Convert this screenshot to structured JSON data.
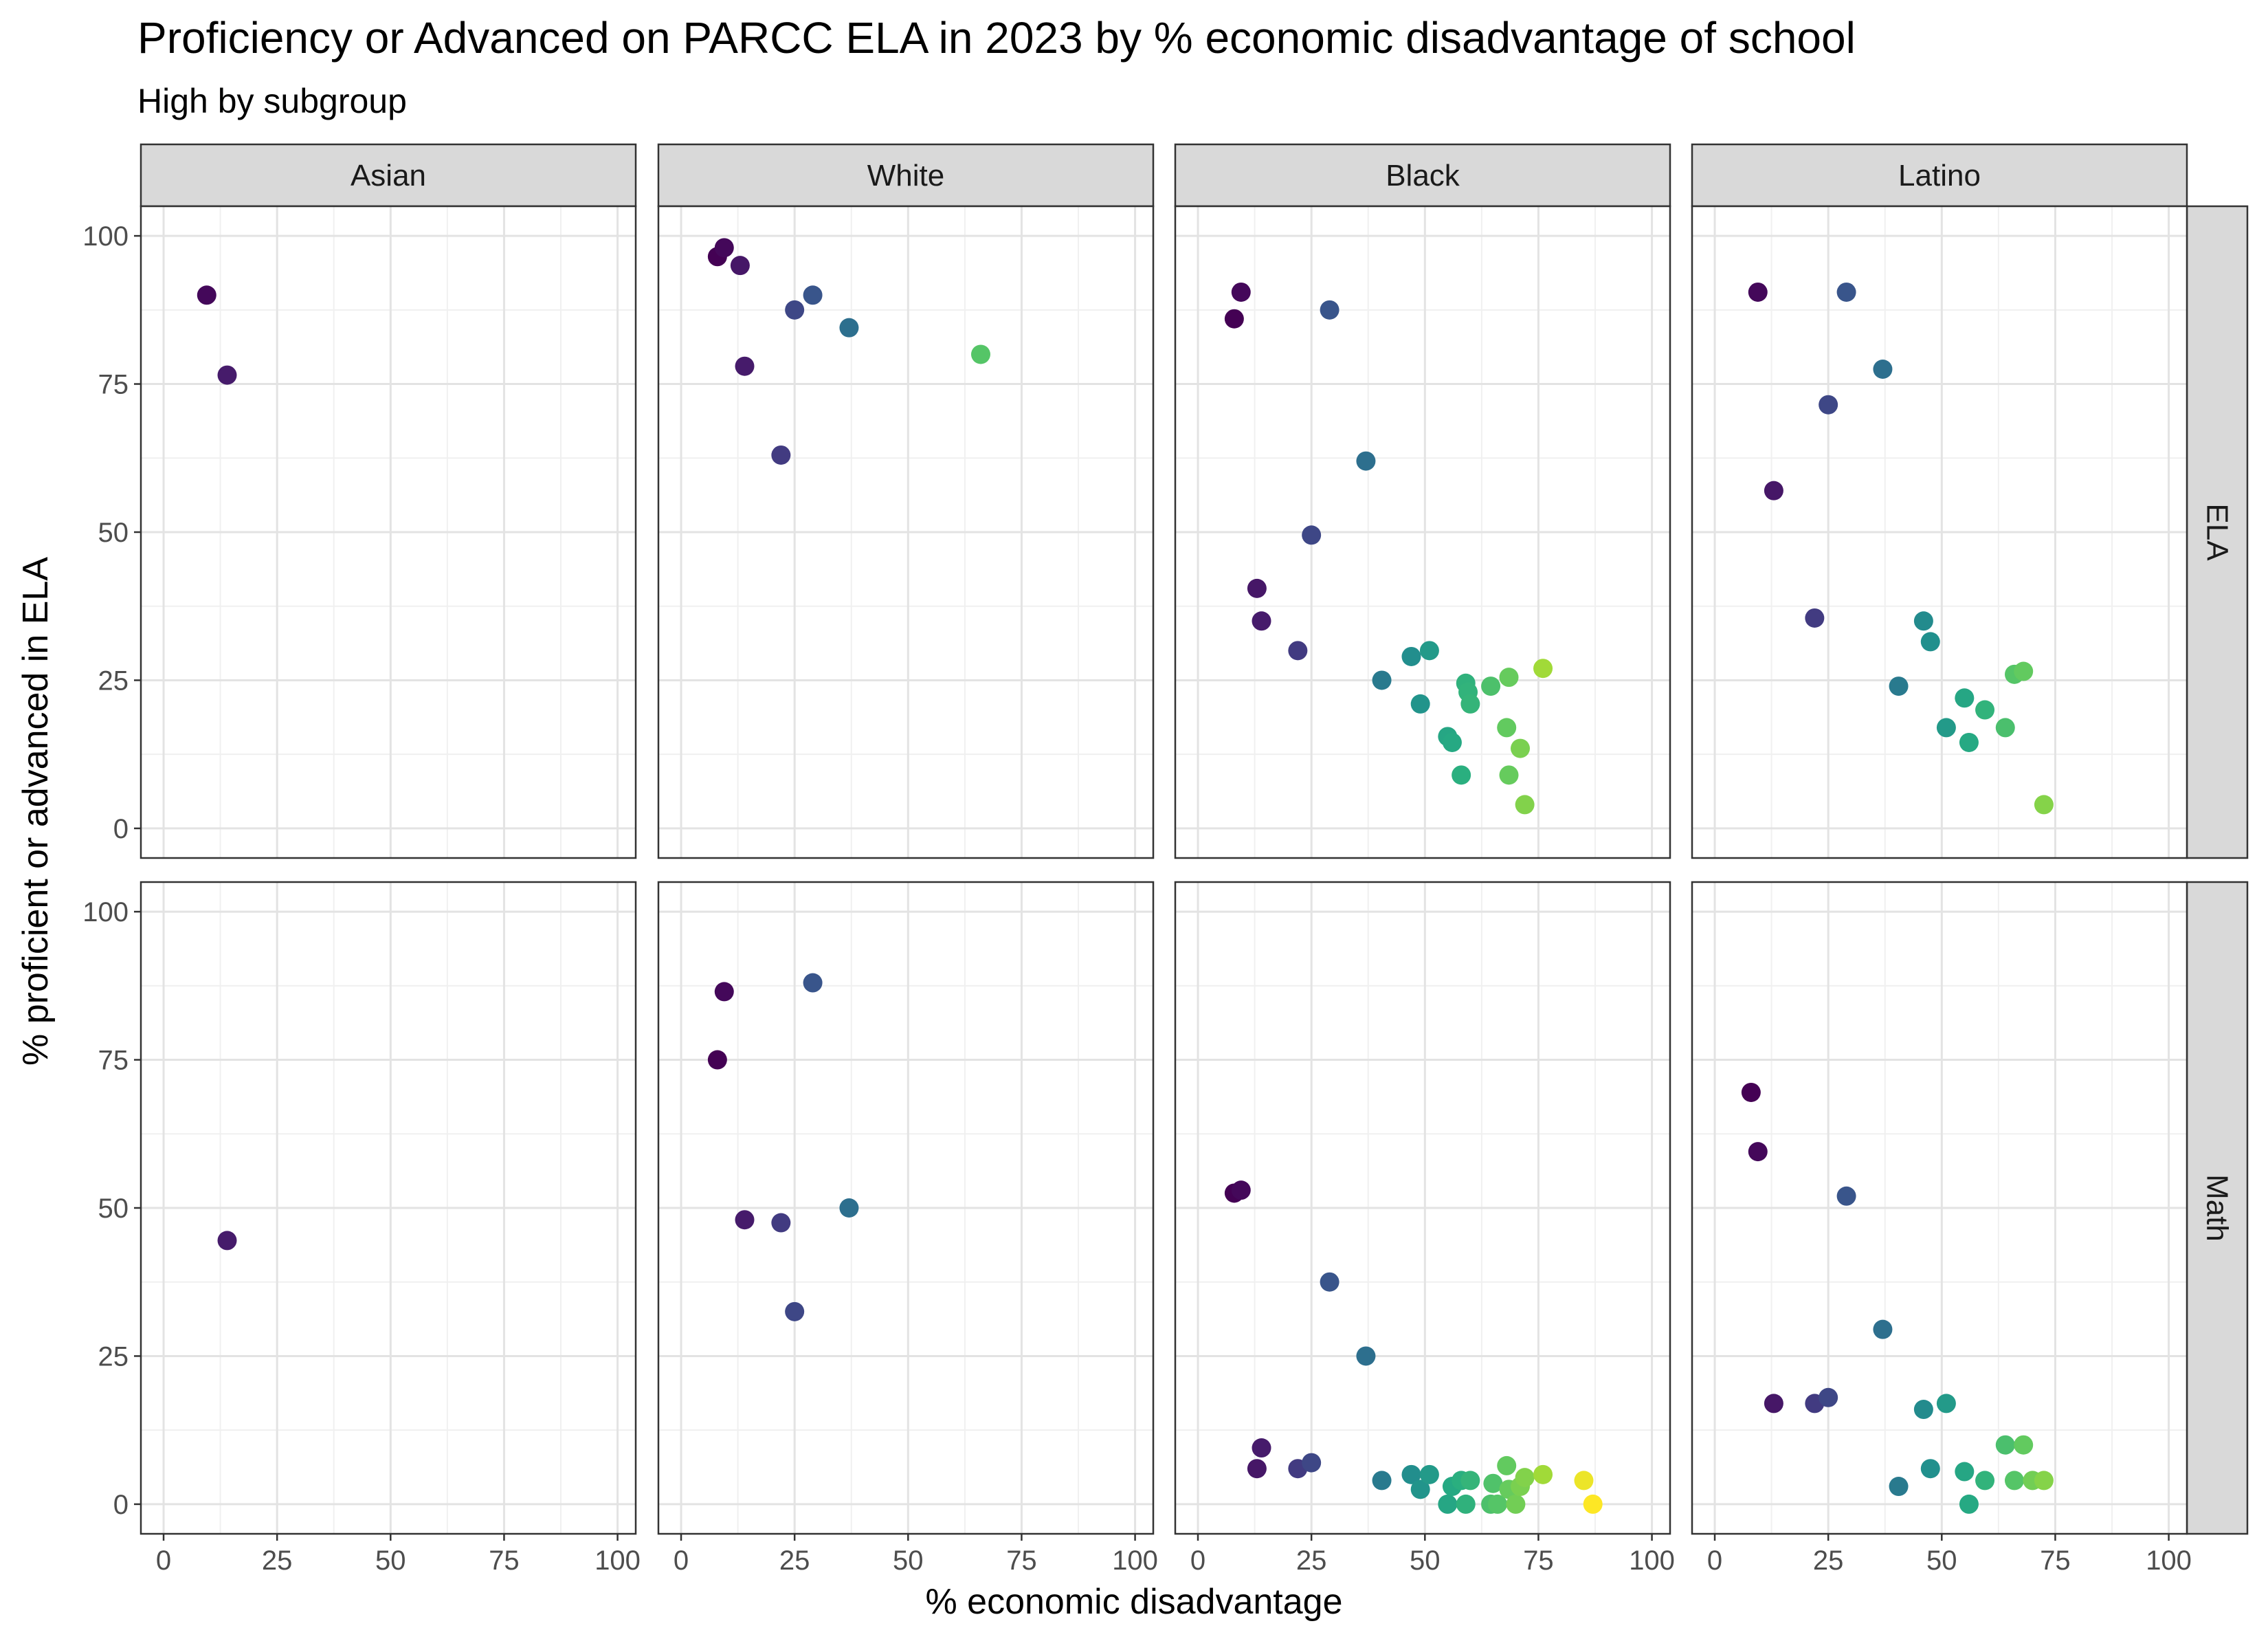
{
  "chart_data": {
    "type": "scatter",
    "title": "Proficiency or Advanced on PARCC ELA in 2023 by % economic disadvantage of school",
    "subtitle": "High by subgroup",
    "xlabel": "% economic disadvantage",
    "ylabel": "% proficient or advanced in ELA",
    "xlim": [
      -5,
      104
    ],
    "ylim": [
      -5,
      105
    ],
    "x_ticks": [
      0,
      25,
      50,
      75,
      100
    ],
    "y_ticks": [
      0,
      25,
      50,
      75,
      100
    ],
    "grid": true,
    "color_scale": "viridis by x (% economic disadvantage)",
    "columns": [
      "Asian",
      "White",
      "Black",
      "Latino"
    ],
    "rows": [
      "ELA",
      "Math"
    ],
    "panels": [
      {
        "row": "ELA",
        "column": "Asian",
        "points": [
          [
            9.5,
            90
          ],
          [
            14,
            76.5
          ]
        ]
      },
      {
        "row": "ELA",
        "column": "White",
        "points": [
          [
            8,
            96.5
          ],
          [
            9.5,
            98
          ],
          [
            13,
            95
          ],
          [
            14,
            78
          ],
          [
            22,
            63
          ],
          [
            25,
            87.5
          ],
          [
            29,
            90
          ],
          [
            37,
            84.5
          ],
          [
            66,
            80
          ]
        ]
      },
      {
        "row": "ELA",
        "column": "Black",
        "points": [
          [
            8,
            86
          ],
          [
            9.5,
            90.5
          ],
          [
            13,
            40.5
          ],
          [
            14,
            35
          ],
          [
            22,
            30
          ],
          [
            25,
            49.5
          ],
          [
            29,
            87.5
          ],
          [
            37,
            62
          ],
          [
            40.5,
            25
          ],
          [
            47,
            29
          ],
          [
            49,
            21
          ],
          [
            51,
            30
          ],
          [
            55,
            15.5
          ],
          [
            56,
            14.5
          ],
          [
            58,
            9
          ],
          [
            59,
            24.5
          ],
          [
            59.5,
            23
          ],
          [
            60,
            21
          ],
          [
            64.5,
            24
          ],
          [
            68,
            17
          ],
          [
            68.5,
            9
          ],
          [
            68.5,
            25.5
          ],
          [
            71,
            13.5
          ],
          [
            72,
            4
          ],
          [
            76,
            27
          ]
        ]
      },
      {
        "row": "ELA",
        "column": "Latino",
        "points": [
          [
            9.5,
            90.5
          ],
          [
            13,
            57
          ],
          [
            22,
            35.5
          ],
          [
            25,
            71.5
          ],
          [
            29,
            90.5
          ],
          [
            37,
            77.5
          ],
          [
            40.5,
            24
          ],
          [
            46,
            35
          ],
          [
            47.5,
            31.5
          ],
          [
            51,
            17
          ],
          [
            55,
            22
          ],
          [
            56,
            14.5
          ],
          [
            59.5,
            20
          ],
          [
            64,
            17
          ],
          [
            66,
            26
          ],
          [
            68,
            26.5
          ],
          [
            72.5,
            4
          ]
        ]
      },
      {
        "row": "Math",
        "column": "Asian",
        "points": [
          [
            14,
            44.5
          ]
        ]
      },
      {
        "row": "Math",
        "column": "White",
        "points": [
          [
            8,
            75
          ],
          [
            9.5,
            86.5
          ],
          [
            14,
            48
          ],
          [
            22,
            47.5
          ],
          [
            25,
            32.5
          ],
          [
            29,
            88
          ],
          [
            37,
            50
          ]
        ]
      },
      {
        "row": "Math",
        "column": "Black",
        "points": [
          [
            8,
            52.5
          ],
          [
            9.5,
            53
          ],
          [
            13,
            6
          ],
          [
            14,
            9.5
          ],
          [
            22,
            6
          ],
          [
            25,
            7
          ],
          [
            29,
            37.5
          ],
          [
            37,
            25
          ],
          [
            40.5,
            4
          ],
          [
            47,
            5
          ],
          [
            49,
            2.5
          ],
          [
            51,
            5
          ],
          [
            55,
            0
          ],
          [
            56,
            3
          ],
          [
            58,
            4
          ],
          [
            59,
            0
          ],
          [
            60,
            4
          ],
          [
            64.5,
            0
          ],
          [
            65,
            3.5
          ],
          [
            66,
            0
          ],
          [
            68,
            6.5
          ],
          [
            68.5,
            2.5
          ],
          [
            70,
            0
          ],
          [
            71,
            3
          ],
          [
            72,
            4.5
          ],
          [
            76,
            5
          ],
          [
            85,
            4
          ],
          [
            87,
            0
          ]
        ]
      },
      {
        "row": "Math",
        "column": "Latino",
        "points": [
          [
            8,
            69.5
          ],
          [
            9.5,
            59.5
          ],
          [
            13,
            17
          ],
          [
            22,
            17
          ],
          [
            25,
            18
          ],
          [
            29,
            52
          ],
          [
            37,
            29.5
          ],
          [
            40.5,
            3
          ],
          [
            46,
            16
          ],
          [
            47.5,
            6
          ],
          [
            51,
            17
          ],
          [
            55,
            5.5
          ],
          [
            56,
            0
          ],
          [
            59.5,
            4
          ],
          [
            64,
            10
          ],
          [
            66,
            4
          ],
          [
            68,
            10
          ],
          [
            70,
            4
          ],
          [
            72.5,
            4
          ]
        ]
      }
    ]
  }
}
